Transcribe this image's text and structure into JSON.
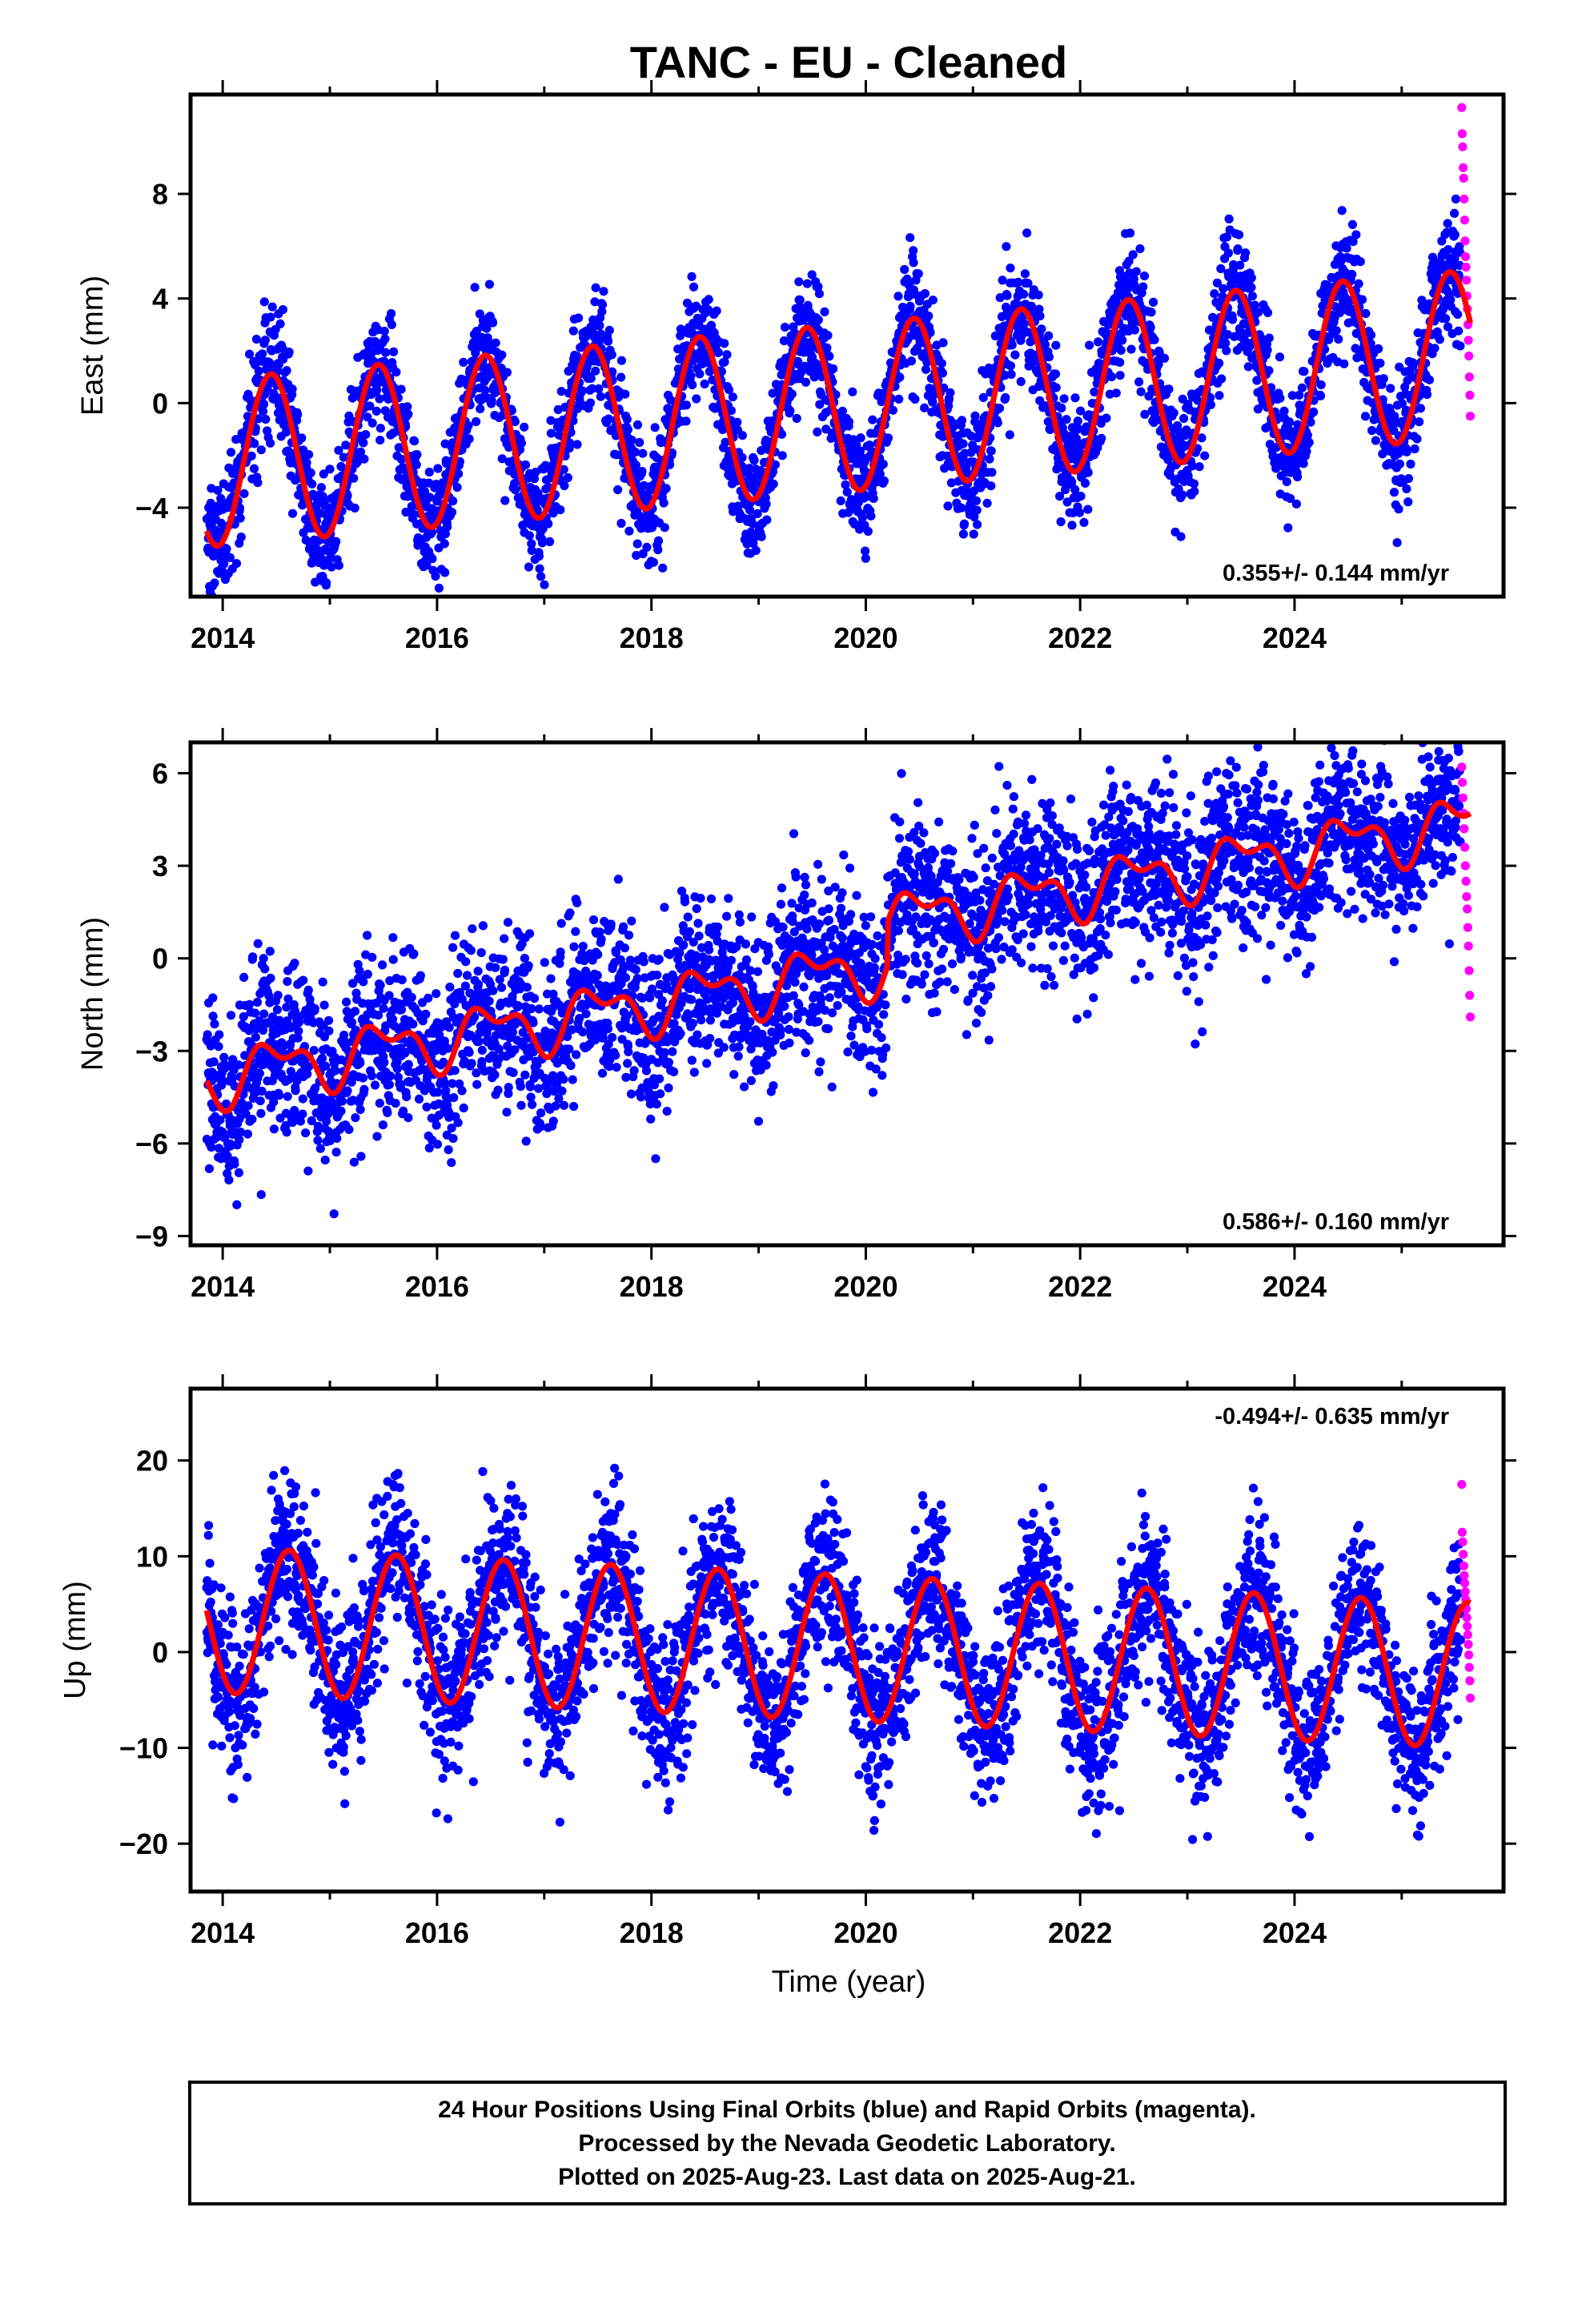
{
  "title": "TANC  - EU - Cleaned",
  "xlabel": "Time (year)",
  "footer": [
    "24 Hour Positions Using Final Orbits (blue) and Rapid Orbits (magenta).",
    "Processed by the Nevada Geodetic Laboratory.",
    "Plotted on 2025-Aug-23. Last data on 2025-Aug-21."
  ],
  "colors": {
    "final": "#0000ff",
    "rapid": "#ff00ff",
    "fit": "#ff0000",
    "frame": "#000000"
  },
  "chart_data": [
    {
      "type": "scatter",
      "name": "east",
      "ylabel": "East (mm)",
      "rate_text": "0.355+/- 0.144 mm/yr",
      "rate_position": "bottom-right",
      "xlim": [
        2013.7,
        2025.95
      ],
      "ylim": [
        -7.4,
        11.8
      ],
      "xticks": [
        2014,
        2016,
        2018,
        2020,
        2022,
        2024
      ],
      "xtick_labels": [
        "2014",
        "2016",
        "2018",
        "2020",
        "2022",
        "2024"
      ],
      "yticks": [
        -4,
        0,
        4,
        8
      ],
      "ytick_labels": [
        "−4",
        "0",
        "4",
        "8"
      ],
      "model": {
        "t0": 2013.85,
        "intercept": -2.3,
        "rate": 0.355,
        "annual_amp": 3.2,
        "annual_peak": 0.45,
        "semi_amp": 0.0,
        "semi_peak": 0.0,
        "offsets": []
      },
      "noise_sd": 1.1,
      "final_range": [
        2013.85,
        2025.55
      ],
      "final_spacing_days": 1,
      "rapid_range": [
        2025.56,
        2025.64
      ],
      "rapid_values": [
        11.3,
        10.3,
        9.8,
        9.0,
        8.6,
        7.8,
        7.0,
        6.2,
        5.6,
        5.2,
        4.7,
        4.1,
        3.6,
        3.0,
        2.4,
        1.8,
        1.0,
        0.3,
        -0.5
      ]
    },
    {
      "type": "scatter",
      "name": "north",
      "ylabel": "North (mm)",
      "rate_text": "0.586+/- 0.160 mm/yr",
      "rate_position": "bottom-right",
      "xlim": [
        2013.7,
        2025.95
      ],
      "ylim": [
        -9.3,
        7.0
      ],
      "xticks": [
        2014,
        2016,
        2018,
        2020,
        2022,
        2024
      ],
      "xtick_labels": [
        "2014",
        "2016",
        "2018",
        "2020",
        "2022",
        "2024"
      ],
      "yticks": [
        -9,
        -6,
        -3,
        0,
        3,
        6
      ],
      "ytick_labels": [
        "−9",
        "−6",
        "−3",
        "0",
        "3",
        "6"
      ],
      "model": {
        "t0": 2013.85,
        "intercept": -3.9,
        "rate": 0.586,
        "annual_amp": 0.75,
        "annual_peak": 0.5,
        "semi_amp": 0.45,
        "semi_peak": 0.3,
        "offsets": [
          [
            2020.2,
            1.4
          ]
        ]
      },
      "noise_sd": 1.35,
      "final_range": [
        2013.85,
        2025.55
      ],
      "final_spacing_days": 1,
      "rapid_range": [
        2025.56,
        2025.64
      ],
      "rapid_values": [
        6.2,
        5.7,
        5.2,
        4.7,
        4.2,
        3.6,
        3.0,
        2.5,
        2.0,
        1.6,
        1.0,
        0.4,
        -0.4,
        -1.2,
        -1.9
      ]
    },
    {
      "type": "scatter",
      "name": "up",
      "ylabel": "Up (mm)",
      "rate_text": "-0.494+/- 0.635 mm/yr",
      "rate_position": "top-right",
      "xlim": [
        2013.7,
        2025.95
      ],
      "ylim": [
        -25,
        27.5
      ],
      "xticks": [
        2014,
        2016,
        2018,
        2020,
        2022,
        2024
      ],
      "xtick_labels": [
        "2014",
        "2016",
        "2018",
        "2020",
        "2022",
        "2024"
      ],
      "yticks": [
        -20,
        -10,
        0,
        10,
        20
      ],
      "ytick_labels": [
        "−20",
        "−10",
        "0",
        "10",
        "20"
      ],
      "model": {
        "t0": 2013.85,
        "intercept": 3.4,
        "rate": -0.494,
        "annual_amp": 7.6,
        "annual_peak": 0.62,
        "semi_amp": 0.0,
        "semi_peak": 0.0,
        "offsets": []
      },
      "noise_sd": 4.2,
      "final_range": [
        2013.85,
        2025.55
      ],
      "final_spacing_days": 1,
      "rapid_range": [
        2025.56,
        2025.64
      ],
      "rapid_values": [
        17.5,
        12.5,
        11.5,
        10.2,
        9.0,
        8.0,
        7.2,
        6.3,
        5.5,
        4.5,
        3.6,
        2.7,
        1.8,
        0.8,
        -0.3,
        -1.6,
        -3.0,
        -4.8
      ]
    }
  ]
}
